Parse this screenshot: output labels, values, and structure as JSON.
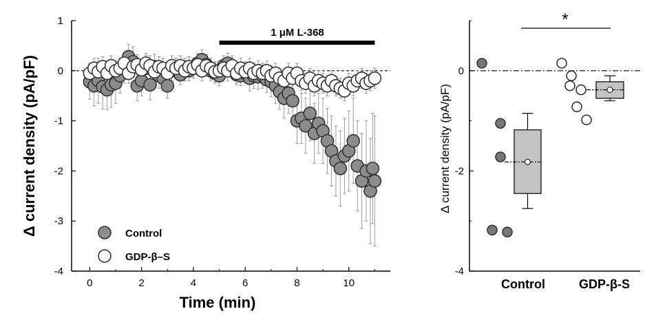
{
  "chart_data": [
    {
      "type": "scatter",
      "xlabel": "Time (min)",
      "ylabel": "Δ current density (pA/pF)",
      "xlim": [
        -0.7,
        11.6
      ],
      "ylim": [
        -4,
        1
      ],
      "xticks": [
        0,
        2,
        4,
        6,
        8,
        10
      ],
      "yticks": [
        1,
        0,
        -1,
        -2,
        -3,
        -4
      ],
      "reference_line_y": 0,
      "treatment_bar": {
        "label": "1 μM L-368",
        "x_start": 5.0,
        "x_end": 11.0
      },
      "legend_position": "bottom-left",
      "grid": false,
      "series": [
        {
          "name": "Control",
          "fill": "#8c8c8c",
          "points": [
            [
              0.0,
              -0.22,
              0.35
            ],
            [
              0.17,
              -0.3,
              0.4
            ],
            [
              0.33,
              -0.2,
              0.45
            ],
            [
              0.5,
              -0.32,
              0.45
            ],
            [
              0.67,
              -0.38,
              0.4
            ],
            [
              0.83,
              -0.28,
              0.45
            ],
            [
              1.0,
              -0.25,
              0.4
            ],
            [
              1.17,
              -0.1,
              0.35
            ],
            [
              1.33,
              0.05,
              0.3
            ],
            [
              1.5,
              0.28,
              0.25
            ],
            [
              1.67,
              0.18,
              0.3
            ],
            [
              1.83,
              -0.3,
              0.3
            ],
            [
              2.0,
              -0.2,
              0.3
            ],
            [
              2.17,
              0.05,
              0.25
            ],
            [
              2.33,
              -0.28,
              0.3
            ],
            [
              2.5,
              0.08,
              0.25
            ],
            [
              2.67,
              -0.1,
              0.25
            ],
            [
              2.83,
              -0.15,
              0.25
            ],
            [
              3.0,
              -0.3,
              0.25
            ],
            [
              3.17,
              0.0,
              0.2
            ],
            [
              3.33,
              0.05,
              0.2
            ],
            [
              3.5,
              -0.08,
              0.2
            ],
            [
              3.67,
              0.05,
              0.2
            ],
            [
              3.83,
              0.0,
              0.2
            ],
            [
              4.0,
              0.05,
              0.2
            ],
            [
              4.17,
              0.15,
              0.2
            ],
            [
              4.33,
              0.22,
              0.2
            ],
            [
              4.5,
              0.12,
              0.2
            ],
            [
              4.67,
              0.0,
              0.2
            ],
            [
              4.83,
              -0.05,
              0.2
            ],
            [
              5.0,
              -0.1,
              0.2
            ],
            [
              5.17,
              0.1,
              0.2
            ],
            [
              5.33,
              0.15,
              0.2
            ],
            [
              5.5,
              0.05,
              0.2
            ],
            [
              5.67,
              -0.08,
              0.2
            ],
            [
              5.83,
              -0.1,
              0.2
            ],
            [
              6.0,
              -0.05,
              0.2
            ],
            [
              6.17,
              -0.15,
              0.25
            ],
            [
              6.33,
              -0.1,
              0.25
            ],
            [
              6.5,
              -0.12,
              0.25
            ],
            [
              6.67,
              -0.1,
              0.25
            ],
            [
              6.83,
              -0.18,
              0.25
            ],
            [
              7.0,
              -0.22,
              0.3
            ],
            [
              7.17,
              -0.3,
              0.35
            ],
            [
              7.33,
              -0.42,
              0.35
            ],
            [
              7.5,
              -0.55,
              0.4
            ],
            [
              7.67,
              -0.45,
              0.4
            ],
            [
              7.83,
              -0.6,
              0.45
            ],
            [
              8.0,
              -1.0,
              0.45
            ],
            [
              8.17,
              -0.95,
              0.5
            ],
            [
              8.33,
              -1.1,
              0.55
            ],
            [
              8.5,
              -0.85,
              0.55
            ],
            [
              8.67,
              -1.25,
              0.6
            ],
            [
              8.83,
              -1.05,
              0.6
            ],
            [
              9.0,
              -1.2,
              0.65
            ],
            [
              9.17,
              -1.4,
              0.65
            ],
            [
              9.33,
              -1.6,
              0.7
            ],
            [
              9.5,
              -1.8,
              0.7
            ],
            [
              9.67,
              -1.95,
              0.75
            ],
            [
              9.83,
              -1.7,
              0.75
            ],
            [
              10.0,
              -1.6,
              0.8
            ],
            [
              10.17,
              -1.4,
              0.85
            ],
            [
              10.33,
              -1.9,
              0.9
            ],
            [
              10.5,
              -2.2,
              0.95
            ],
            [
              10.67,
              -2.0,
              1.0
            ],
            [
              10.83,
              -2.4,
              1.05
            ],
            [
              10.92,
              -1.95,
              1.1
            ],
            [
              11.0,
              -2.2,
              1.3
            ]
          ]
        },
        {
          "name": "GDP-β–S",
          "fill": "#ffffff",
          "points": [
            [
              0.0,
              -0.05,
              0.2
            ],
            [
              0.17,
              0.05,
              0.2
            ],
            [
              0.33,
              -0.02,
              0.2
            ],
            [
              0.5,
              0.08,
              0.2
            ],
            [
              0.67,
              -0.05,
              0.2
            ],
            [
              0.83,
              0.1,
              0.2
            ],
            [
              1.0,
              0.0,
              0.2
            ],
            [
              1.17,
              0.05,
              0.2
            ],
            [
              1.33,
              0.15,
              0.2
            ],
            [
              1.5,
              -0.05,
              0.2
            ],
            [
              1.67,
              0.08,
              0.2
            ],
            [
              1.83,
              0.12,
              0.2
            ],
            [
              2.0,
              0.02,
              0.2
            ],
            [
              2.17,
              0.15,
              0.2
            ],
            [
              2.33,
              0.1,
              0.2
            ],
            [
              2.5,
              -0.02,
              0.2
            ],
            [
              2.67,
              0.08,
              0.2
            ],
            [
              2.83,
              0.05,
              0.2
            ],
            [
              3.0,
              -0.05,
              0.2
            ],
            [
              3.17,
              0.1,
              0.2
            ],
            [
              3.33,
              0.05,
              0.2
            ],
            [
              3.5,
              0.1,
              0.2
            ],
            [
              3.67,
              0.0,
              0.2
            ],
            [
              3.83,
              0.08,
              0.2
            ],
            [
              4.0,
              0.05,
              0.2
            ],
            [
              4.17,
              0.12,
              0.2
            ],
            [
              4.33,
              0.0,
              0.2
            ],
            [
              4.5,
              0.1,
              0.2
            ],
            [
              4.67,
              0.05,
              0.2
            ],
            [
              4.83,
              -0.02,
              0.2
            ],
            [
              5.0,
              0.0,
              0.2
            ],
            [
              5.17,
              0.05,
              0.2
            ],
            [
              5.33,
              0.0,
              0.2
            ],
            [
              5.5,
              0.1,
              0.2
            ],
            [
              5.67,
              -0.05,
              0.2
            ],
            [
              5.83,
              0.05,
              0.2
            ],
            [
              6.0,
              -0.02,
              0.2
            ],
            [
              6.17,
              0.05,
              0.2
            ],
            [
              6.33,
              -0.05,
              0.2
            ],
            [
              6.5,
              0.0,
              0.2
            ],
            [
              6.67,
              -0.05,
              0.2
            ],
            [
              6.83,
              0.0,
              0.2
            ],
            [
              7.0,
              -0.1,
              0.2
            ],
            [
              7.17,
              -0.05,
              0.2
            ],
            [
              7.33,
              -0.15,
              0.2
            ],
            [
              7.5,
              -0.2,
              0.2
            ],
            [
              7.67,
              -0.05,
              0.2
            ],
            [
              7.83,
              -0.15,
              0.2
            ],
            [
              8.0,
              -0.05,
              0.2
            ],
            [
              8.17,
              -0.2,
              0.2
            ],
            [
              8.33,
              -0.25,
              0.2
            ],
            [
              8.5,
              -0.15,
              0.2
            ],
            [
              8.67,
              -0.3,
              0.2
            ],
            [
              8.83,
              -0.2,
              0.2
            ],
            [
              9.0,
              -0.25,
              0.2
            ],
            [
              9.17,
              -0.3,
              0.2
            ],
            [
              9.33,
              -0.2,
              0.2
            ],
            [
              9.5,
              -0.3,
              0.2
            ],
            [
              9.67,
              -0.35,
              0.2
            ],
            [
              9.83,
              -0.4,
              0.2
            ],
            [
              10.0,
              -0.25,
              0.2
            ],
            [
              10.17,
              -0.3,
              0.2
            ],
            [
              10.33,
              -0.2,
              0.2
            ],
            [
              10.5,
              -0.15,
              0.2
            ],
            [
              10.67,
              -0.25,
              0.2
            ],
            [
              10.83,
              -0.2,
              0.2
            ],
            [
              11.0,
              -0.15,
              0.2
            ]
          ]
        }
      ]
    },
    {
      "type": "box",
      "ylabel": "Δ current density (pA/pF)",
      "ylim": [
        -4,
        1
      ],
      "yticks": [
        0,
        -2,
        -4
      ],
      "categories": [
        "Control",
        "GDP-β-S"
      ],
      "significance": "*",
      "reference_line_y": 0,
      "groups": [
        {
          "name": "Control",
          "point_fill": "#777777",
          "points": [
            0.15,
            -1.05,
            -1.72,
            -3.18,
            -3.22
          ],
          "box": {
            "whisker_low": -2.75,
            "q1": -2.45,
            "median": -1.82,
            "mean": -1.82,
            "q3": -1.18,
            "whisker_high": -0.85
          }
        },
        {
          "name": "GDP-β-S",
          "point_fill": "#ffffff",
          "points": [
            0.15,
            -0.1,
            -0.3,
            -0.38,
            -0.72,
            -0.98
          ],
          "box": {
            "whisker_low": -0.6,
            "q1": -0.55,
            "median": -0.38,
            "mean": -0.38,
            "q3": -0.22,
            "whisker_high": -0.1
          }
        }
      ]
    }
  ]
}
